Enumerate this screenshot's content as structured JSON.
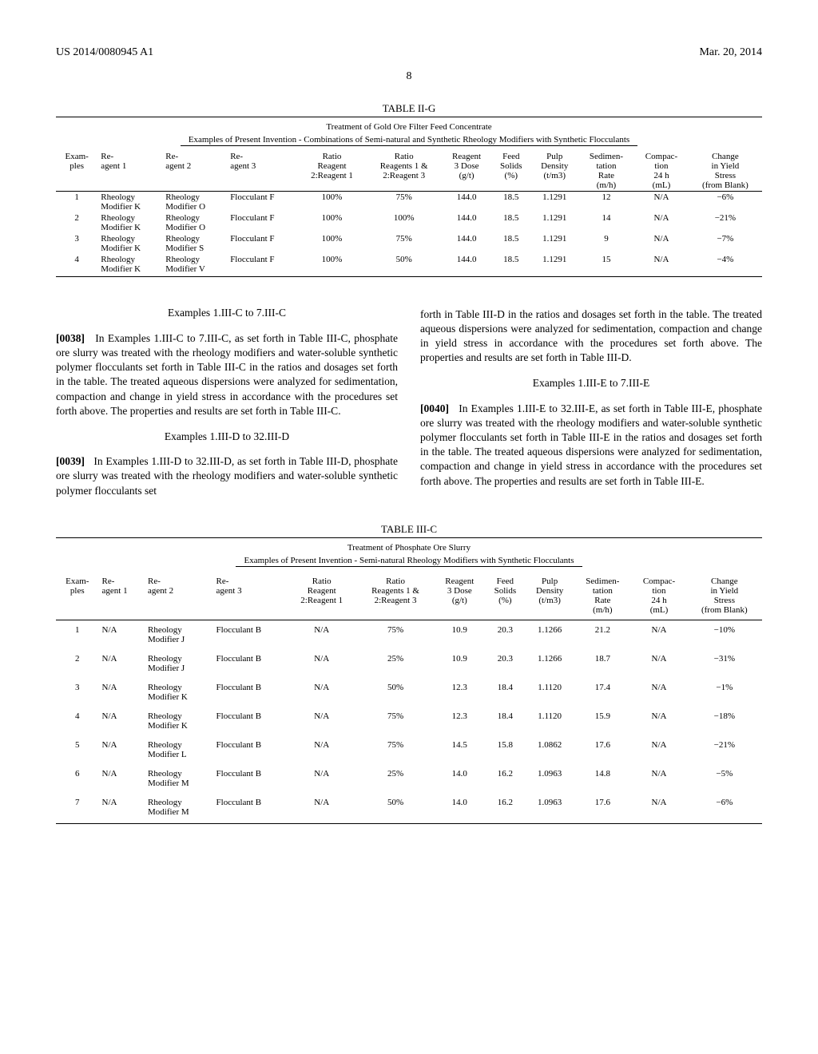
{
  "header": {
    "left": "US 2014/0080945 A1",
    "right": "Mar. 20, 2014"
  },
  "page_number": "8",
  "table_g": {
    "caption": "TABLE II-G",
    "sub1": "Treatment of Gold Ore Filter Feed Concentrate",
    "sub2": "Examples of Present Invention - Combinations of Semi-natural and Synthetic Rheology Modifiers with Synthetic Flocculants",
    "columns": [
      "Exam-\nples",
      "Re-\nagent 1",
      "Re-\nagent 2",
      "Re-\nagent 3",
      "Ratio\nReagent\n2:Reagent 1",
      "Ratio\nReagents 1 &\n2:Reagent 3",
      "Reagent\n3 Dose\n(g/t)",
      "Feed\nSolids\n(%)",
      "Pulp\nDensity\n(t/m3)",
      "Sedimen-\ntation\nRate\n(m/h)",
      "Compac-\ntion\n24 h\n(mL)",
      "Change\nin Yield\nStress\n(from Blank)"
    ],
    "rows": [
      [
        "1",
        "Rheology\nModifier K",
        "Rheology\nModifier O",
        "Flocculant F",
        "100%",
        "75%",
        "144.0",
        "18.5",
        "1.1291",
        "12",
        "N/A",
        "−6%"
      ],
      [
        "2",
        "Rheology\nModifier K",
        "Rheology\nModifier O",
        "Flocculant F",
        "100%",
        "100%",
        "144.0",
        "18.5",
        "1.1291",
        "14",
        "N/A",
        "−21%"
      ],
      [
        "3",
        "Rheology\nModifier K",
        "Rheology\nModifier S",
        "Flocculant F",
        "100%",
        "75%",
        "144.0",
        "18.5",
        "1.1291",
        "9",
        "N/A",
        "−7%"
      ],
      [
        "4",
        "Rheology\nModifier K",
        "Rheology\nModifier V",
        "Flocculant F",
        "100%",
        "50%",
        "144.0",
        "18.5",
        "1.1291",
        "15",
        "N/A",
        "−4%"
      ]
    ]
  },
  "sections": {
    "s1": {
      "heading": "Examples 1.III-C to 7.III-C",
      "num": "[0038]",
      "text": "In Examples 1.III-C to 7.III-C, as set forth in Table III-C, phosphate ore slurry was treated with the rheology modifiers and water-soluble synthetic polymer flocculants set forth in Table III-C in the ratios and dosages set forth in the table. The treated aqueous dispersions were analyzed for sedimentation, compaction and change in yield stress in accordance with the procedures set forth above. The properties and results are set forth in Table III-C."
    },
    "s2": {
      "heading": "Examples 1.III-D to 32.III-D",
      "num": "[0039]",
      "text_a": "In Examples 1.III-D to 32.III-D, as set forth in Table III-D, phosphate ore slurry was treated with the rheology modifiers and water-soluble synthetic polymer flocculants set",
      "text_b": "forth in Table III-D in the ratios and dosages set forth in the table. The treated aqueous dispersions were analyzed for sedimentation, compaction and change in yield stress in accordance with the procedures set forth above. The properties and results are set forth in Table III-D."
    },
    "s3": {
      "heading": "Examples 1.III-E to 7.III-E",
      "num": "[0040]",
      "text": "In Examples 1.III-E to 32.III-E, as set forth in Table III-E, phosphate ore slurry was treated with the rheology modifiers and water-soluble synthetic polymer flocculants set forth in Table III-E in the ratios and dosages set forth in the table. The treated aqueous dispersions were analyzed for sedimentation, compaction and change in yield stress in accordance with the procedures set forth above. The properties and results are set forth in Table III-E."
    }
  },
  "table_c": {
    "caption": "TABLE III-C",
    "sub1": "Treatment of Phosphate Ore Slurry",
    "sub2": "Examples of Present Invention - Semi-natural Rheology Modifiers with Synthetic Flocculants",
    "columns": [
      "Exam-\nples",
      "Re-\nagent 1",
      "Re-\nagent 2",
      "Re-\nagent 3",
      "Ratio\nReagent\n2:Reagent 1",
      "Ratio\nReagents 1 &\n2:Reagent 3",
      "Reagent\n3 Dose\n(g/t)",
      "Feed\nSolids\n(%)",
      "Pulp\nDensity\n(t/m3)",
      "Sedimen-\ntation\nRate\n(m/h)",
      "Compac-\ntion\n24 h\n(mL)",
      "Change\nin Yield\nStress\n(from Blank)"
    ],
    "rows": [
      [
        "1",
        "N/A",
        "Rheology\nModifier J",
        "Flocculant B",
        "N/A",
        "75%",
        "10.9",
        "20.3",
        "1.1266",
        "21.2",
        "N/A",
        "−10%"
      ],
      [
        "2",
        "N/A",
        "Rheology\nModifier J",
        "Flocculant B",
        "N/A",
        "25%",
        "10.9",
        "20.3",
        "1.1266",
        "18.7",
        "N/A",
        "−31%"
      ],
      [
        "3",
        "N/A",
        "Rheology\nModifier K",
        "Flocculant B",
        "N/A",
        "50%",
        "12.3",
        "18.4",
        "1.1120",
        "17.4",
        "N/A",
        "−1%"
      ],
      [
        "4",
        "N/A",
        "Rheology\nModifier K",
        "Flocculant B",
        "N/A",
        "75%",
        "12.3",
        "18.4",
        "1.1120",
        "15.9",
        "N/A",
        "−18%"
      ],
      [
        "5",
        "N/A",
        "Rheology\nModifier L",
        "Flocculant B",
        "N/A",
        "75%",
        "14.5",
        "15.8",
        "1.0862",
        "17.6",
        "N/A",
        "−21%"
      ],
      [
        "6",
        "N/A",
        "Rheology\nModifier M",
        "Flocculant B",
        "N/A",
        "25%",
        "14.0",
        "16.2",
        "1.0963",
        "14.8",
        "N/A",
        "−5%"
      ],
      [
        "7",
        "N/A",
        "Rheology\nModifier M",
        "Flocculant B",
        "N/A",
        "50%",
        "14.0",
        "16.2",
        "1.0963",
        "17.6",
        "N/A",
        "−6%"
      ]
    ]
  }
}
